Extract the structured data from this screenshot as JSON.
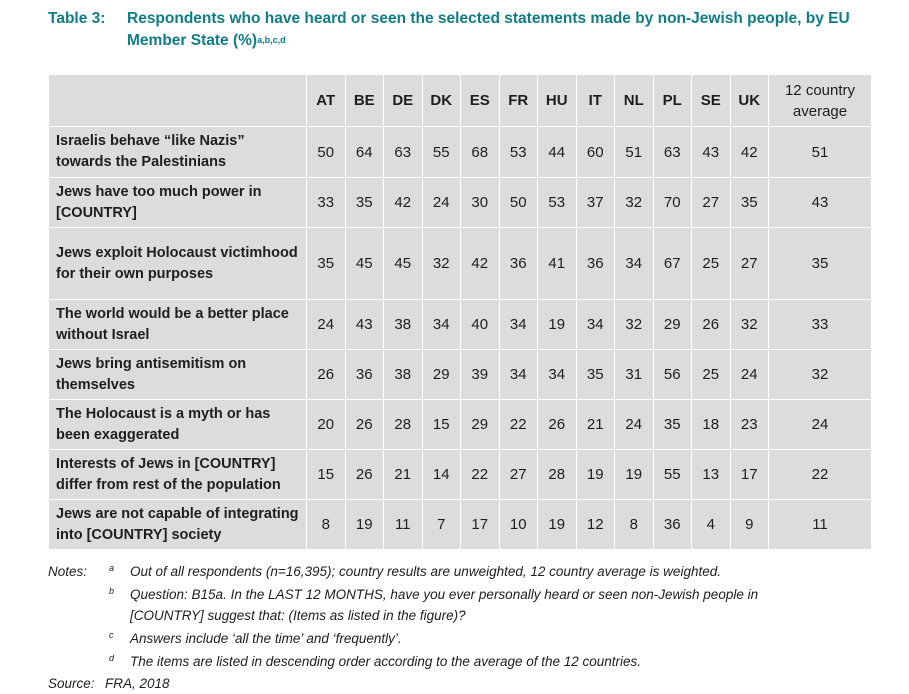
{
  "title": {
    "label": "Table 3:",
    "text": "Respondents who have heard or seen the selected statements made by non-Jewish people, by EU Member State (%)",
    "superscript": "a,b,c,d"
  },
  "table": {
    "countries": [
      "AT",
      "BE",
      "DE",
      "DK",
      "ES",
      "FR",
      "HU",
      "IT",
      "NL",
      "PL",
      "SE",
      "UK"
    ],
    "average_header": "12 country average",
    "rows": [
      {
        "label": "Israelis behave “like Nazis” towards the Palestinians",
        "values": [
          "50",
          "64",
          "63",
          "55",
          "68",
          "53",
          "44",
          "60",
          "51",
          "63",
          "43",
          "42"
        ],
        "average": "51"
      },
      {
        "label": "Jews have too much power in [COUNTRY]",
        "values": [
          "33",
          "35",
          "42",
          "24",
          "30",
          "50",
          "53",
          "37",
          "32",
          "70",
          "27",
          "35"
        ],
        "average": "43"
      },
      {
        "label": "Jews exploit Holocaust victimhood for their own purposes",
        "values": [
          "35",
          "45",
          "45",
          "32",
          "42",
          "36",
          "41",
          "36",
          "34",
          "67",
          "25",
          "27"
        ],
        "average": "35"
      },
      {
        "label": "The world would be a better place without Israel",
        "values": [
          "24",
          "43",
          "38",
          "34",
          "40",
          "34",
          "19",
          "34",
          "32",
          "29",
          "26",
          "32"
        ],
        "average": "33"
      },
      {
        "label": "Jews bring antisemitism on themselves",
        "values": [
          "26",
          "36",
          "38",
          "29",
          "39",
          "34",
          "34",
          "35",
          "31",
          "56",
          "25",
          "24"
        ],
        "average": "32"
      },
      {
        "label": "The Holocaust is a myth or has been exaggerated",
        "values": [
          "20",
          "26",
          "28",
          "15",
          "29",
          "22",
          "26",
          "21",
          "24",
          "35",
          "18",
          "23"
        ],
        "average": "24"
      },
      {
        "label": "Interests of Jews in [COUNTRY] differ from rest of the population",
        "values": [
          "15",
          "26",
          "21",
          "14",
          "22",
          "27",
          "28",
          "19",
          "19",
          "55",
          "13",
          "17"
        ],
        "average": "22"
      },
      {
        "label": "Jews are not capable of integrating into [COUNTRY] society",
        "values": [
          "8",
          "19",
          "11",
          "7",
          "17",
          "10",
          "19",
          "12",
          "8",
          "36",
          "4",
          "9"
        ],
        "average": "11"
      }
    ]
  },
  "notes": {
    "label": "Notes:",
    "items": [
      {
        "letter": "a",
        "text": "Out of all respondents (n=16,395); country results are unweighted, 12 country average is weighted."
      },
      {
        "letter": "b",
        "text": "Question: B15a. In the LAST 12 MONTHS, have you ever personally heard or seen non-Jewish people in [COUNTRY] suggest that: (Items as listed in the figure)?"
      },
      {
        "letter": "c",
        "text": "Answers include ‘all the time’ and ‘frequently’."
      },
      {
        "letter": "d",
        "text": "The items are listed in descending order according to the average of the 12 countries."
      }
    ]
  },
  "source": {
    "label": "Source:",
    "text": "FRA, 2018"
  }
}
